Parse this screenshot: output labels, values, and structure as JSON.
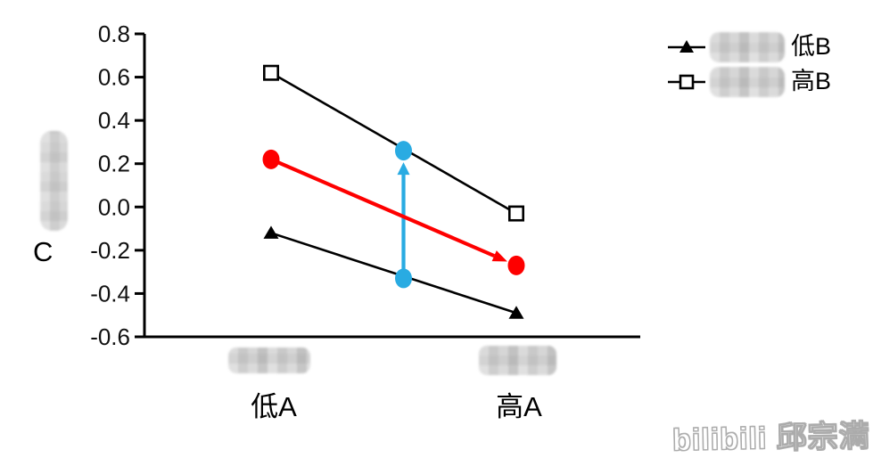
{
  "figure": {
    "background": "#ffffff",
    "watermark": "bilibili 邱宗满"
  },
  "chart_data": {
    "type": "line",
    "title": "",
    "xlabel": "",
    "ylabel_visible": "C",
    "categories": [
      "低A",
      "高A"
    ],
    "ylim": [
      -0.6,
      0.8
    ],
    "yticks": [
      "0.8",
      "0.6",
      "0.4",
      "0.2",
      "0.0",
      "-0.2",
      "-0.4",
      "-0.6"
    ],
    "grid": false,
    "legend_position": "right-top",
    "series": [
      {
        "name": "低B",
        "marker": "filled-triangle",
        "color": "#000000",
        "values": [
          -0.12,
          -0.49
        ]
      },
      {
        "name": "高B",
        "marker": "open-square",
        "color": "#000000",
        "values": [
          0.62,
          -0.03
        ]
      },
      {
        "name": "red-main-effect-line",
        "marker": "filled-ellipse",
        "color": "#fe0000",
        "values": [
          0.22,
          -0.27
        ],
        "arrow_at_end": true
      }
    ],
    "annotation_arrow": {
      "color": "#29abe2",
      "x_fraction_between_categories": 0.54,
      "from_value": -0.33,
      "to_value": 0.26,
      "endpoint_marker": "filled-ellipse"
    },
    "legend": [
      {
        "label": "低B",
        "marker": "filled-triangle",
        "censored_prefix": true
      },
      {
        "label": "高B",
        "marker": "open-square",
        "censored_prefix": true
      }
    ]
  }
}
